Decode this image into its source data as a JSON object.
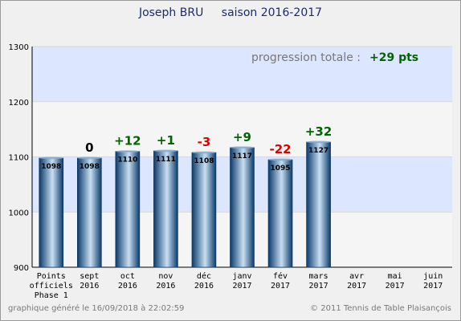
{
  "header": {
    "player_name": "Joseph BRU",
    "season": "saison 2016-2017"
  },
  "progression": {
    "label": "progression totale :",
    "value": "+29 pts"
  },
  "footer": {
    "generated": "graphique généré le 16/09/2018 à 22:02:59",
    "copyright": "© 2011 Tennis de Table Plaisançois"
  },
  "colors": {
    "positive": "#006400",
    "negative": "#dd0000",
    "zero": "#000000",
    "band": "#dde6ff",
    "bar_dark": "#0a3a6a",
    "bar_light": "#c8dff2"
  },
  "chart_data": {
    "type": "bar",
    "title": "Joseph BRU    saison 2016-2017",
    "categories": [
      [
        "Points",
        "officiels",
        "Phase 1"
      ],
      [
        "sept",
        "2016"
      ],
      [
        "oct",
        "2016"
      ],
      [
        "nov",
        "2016"
      ],
      [
        "déc",
        "2016"
      ],
      [
        "janv",
        "2017"
      ],
      [
        "fév",
        "2017"
      ],
      [
        "mars",
        "2017"
      ],
      [
        "avr",
        "2017"
      ],
      [
        "mai",
        "2017"
      ],
      [
        "juin",
        "2017"
      ]
    ],
    "values": [
      1098,
      1098,
      1110,
      1111,
      1108,
      1117,
      1095,
      1127,
      null,
      null,
      null
    ],
    "value_labels": [
      "1098",
      "1098",
      "1110",
      "1111",
      "1108",
      "1117",
      "1095",
      "1127",
      "",
      "",
      ""
    ],
    "deltas": [
      "",
      "0",
      "+12",
      "+1",
      "-3",
      "+9",
      "-22",
      "+32",
      "",
      "",
      ""
    ],
    "ylim": [
      900,
      1300
    ],
    "yticks": [
      900,
      1000,
      1100,
      1200,
      1300
    ],
    "grid": true
  }
}
